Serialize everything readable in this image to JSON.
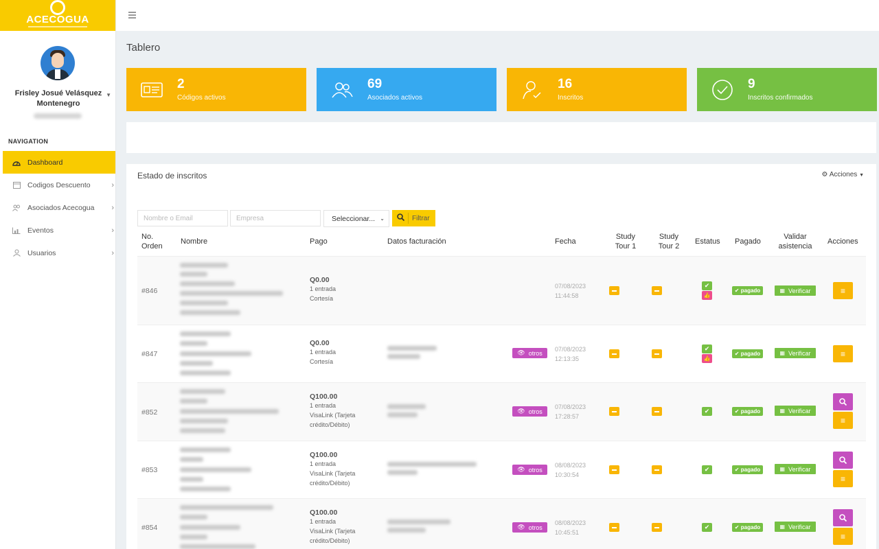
{
  "brand": {
    "name": "ACECOGUA"
  },
  "user": {
    "name": "Frisley Josué Velásquez Montenegro"
  },
  "nav": {
    "title": "NAVIGATION",
    "items": [
      {
        "label": "Dashboard",
        "icon": "dashboard-icon",
        "active": true
      },
      {
        "label": "Codigos Descuento",
        "icon": "calendar-icon"
      },
      {
        "label": "Asociados Acecogua",
        "icon": "users-icon"
      },
      {
        "label": "Eventos",
        "icon": "chart-icon"
      },
      {
        "label": "Usuarios",
        "icon": "user-icon"
      }
    ]
  },
  "page": {
    "title": "Tablero"
  },
  "stats": [
    {
      "value": "2",
      "label": "Códigos activos",
      "color": "#f9b605",
      "icon": "id-card-icon"
    },
    {
      "value": "69",
      "label": "Asociados activos",
      "color": "#36a9f0",
      "icon": "users-icon"
    },
    {
      "value": "16",
      "label": "Inscritos",
      "color": "#f9b605",
      "icon": "user-check-icon"
    },
    {
      "value": "9",
      "label": "Inscritos confirmados",
      "color": "#76c043",
      "icon": "check-circle-icon"
    }
  ],
  "panel": {
    "title": "Estado de inscritos",
    "actions_label": "Acciones",
    "filters": {
      "name_placeholder": "Nombre o Email",
      "company_placeholder": "Empresa",
      "select_value": "Seleccionar...",
      "button_label": "Filtrar"
    },
    "columns": {
      "order": "No. Orden",
      "name": "Nombre",
      "pago": "Pago",
      "facturacion": "Datos facturación",
      "fecha": "Fecha",
      "study1": "Study Tour 1",
      "study2": "Study Tour 2",
      "estatus": "Estatus",
      "pagado": "Pagado",
      "validar": "Validar asistencia",
      "acciones": "Acciones"
    },
    "rows": [
      {
        "order": "#846",
        "amount": "Q0.00",
        "entries": "1 entrada",
        "method": "Cortesía",
        "method2": "",
        "date": "07/08/2023",
        "time": "11:44:58",
        "otros": "",
        "thumb": true,
        "search": false,
        "pagado": "pagado",
        "verificar": "Verificar"
      },
      {
        "order": "#847",
        "amount": "Q0.00",
        "entries": "1 entrada",
        "method": "Cortesía",
        "method2": "",
        "date": "07/08/2023",
        "time": "12:13:35",
        "otros": "otros",
        "thumb": true,
        "search": false,
        "pagado": "pagado",
        "verificar": "Verificar"
      },
      {
        "order": "#852",
        "amount": "Q100.00",
        "entries": "1 entrada",
        "method": "VisaLink (Tarjeta",
        "method2": "crédito/Débito)",
        "date": "07/08/2023",
        "time": "17:28:57",
        "otros": "otros",
        "thumb": false,
        "search": true,
        "pagado": "pagado",
        "verificar": "Verificar"
      },
      {
        "order": "#853",
        "amount": "Q100.00",
        "entries": "1 entrada",
        "method": "VisaLink (Tarjeta",
        "method2": "crédito/Débito)",
        "date": "08/08/2023",
        "time": "10:30:54",
        "otros": "otros",
        "thumb": false,
        "search": true,
        "pagado": "pagado",
        "verificar": "Verificar"
      },
      {
        "order": "#854",
        "amount": "Q100.00",
        "entries": "1 entrada",
        "method": "VisaLink (Tarjeta",
        "method2": "crédito/Débito)",
        "date": "08/08/2023",
        "time": "10:45:51",
        "otros": "otros",
        "thumb": false,
        "search": true,
        "pagado": "pagado",
        "verificar": "Verificar"
      }
    ]
  }
}
